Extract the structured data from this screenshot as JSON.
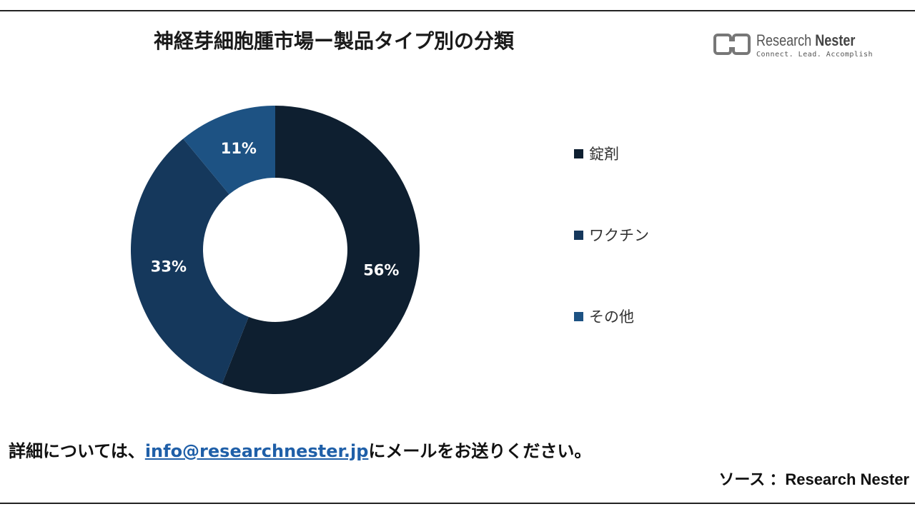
{
  "title": "神経芽細胞腫市場ー製品タイプ別の分類",
  "logo": {
    "name_part1": "Research",
    "name_part2": "Nester",
    "tagline": "Connect. Lead. Accomplish"
  },
  "footer": {
    "prefix": "詳細については、",
    "email": "info@researchnester.jp",
    "suffix": "にメールをお送りください。"
  },
  "source": "ソース ：Research Nester",
  "colors": {
    "錠剤": "#0e1f30",
    "ワクチン": "#15385c",
    "その他": "#1d5283"
  },
  "chart_data": {
    "type": "pie",
    "donut": true,
    "categories": [
      "錠剤",
      "ワクチン",
      "その他"
    ],
    "values": [
      56,
      33,
      11
    ],
    "labels": [
      "56%",
      "33%",
      "11%"
    ],
    "legend_position": "right"
  }
}
